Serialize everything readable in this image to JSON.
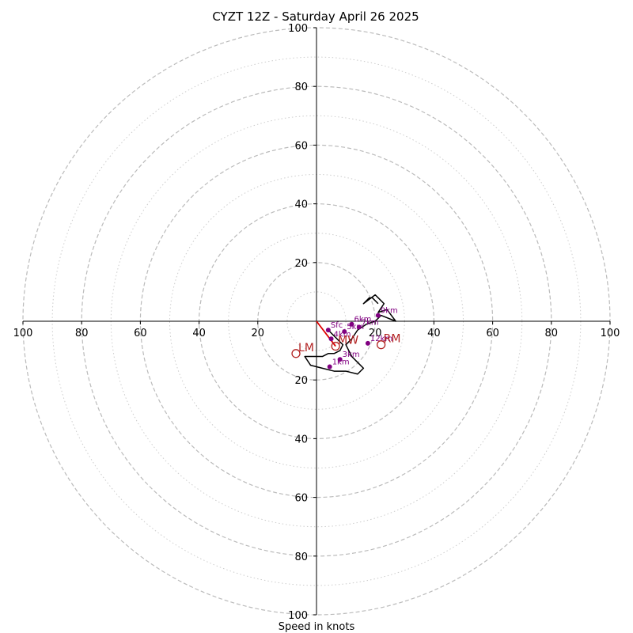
{
  "chart_data": {
    "type": "line",
    "title": "CYZT 12Z - Saturday April 26 2025",
    "xlabel": "Speed in knots",
    "range": [
      -100,
      100
    ],
    "rings_major": [
      20,
      40,
      60,
      80,
      100
    ],
    "rings_minor": [
      10,
      30,
      50,
      70,
      90
    ],
    "tick_labels_x": [
      "100",
      "80",
      "60",
      "40",
      "20",
      "20",
      "40",
      "60",
      "80",
      "100"
    ],
    "tick_values_x": [
      -100,
      -80,
      -60,
      -40,
      -20,
      20,
      40,
      60,
      80,
      100
    ],
    "tick_labels_y": [
      "100",
      "80",
      "60",
      "40",
      "20",
      "20",
      "40",
      "60",
      "80",
      "100"
    ],
    "tick_values_y": [
      100,
      80,
      60,
      40,
      20,
      -20,
      -40,
      -60,
      -80,
      -100
    ],
    "colors": {
      "trace": "#000000",
      "points": "#800080",
      "storm_motion": "#b22222",
      "shear": "#dd0000",
      "grid": "#bbbbbb"
    },
    "trace": {
      "u": [
        4,
        6,
        8,
        9,
        8,
        6,
        4,
        2,
        0,
        -2,
        -4,
        -2,
        2,
        6,
        10,
        14,
        16,
        14,
        12,
        10,
        12,
        14,
        17,
        20,
        22,
        27,
        24,
        21,
        23,
        21,
        20,
        16,
        17,
        18,
        19,
        21
      ],
      "v": [
        -3,
        -5,
        -7,
        -8,
        -10,
        -11,
        -11,
        -12,
        -12,
        -12,
        -12,
        -15,
        -16,
        -17,
        -17,
        -18,
        -16,
        -14,
        -12,
        -8,
        -6,
        -3,
        -1,
        0,
        2,
        0,
        4,
        3,
        6,
        8,
        9,
        6,
        7,
        8,
        8,
        6
      ]
    },
    "height_points": [
      {
        "label": "Sfc",
        "u": 4,
        "v": -3
      },
      {
        "label": "1km",
        "u": 4.5,
        "v": -15.5
      },
      {
        "label": "3km",
        "u": 8,
        "v": -13
      },
      {
        "label": "4km",
        "u": 5,
        "v": -6
      },
      {
        "label": "5km",
        "u": 9.5,
        "v": -3.5
      },
      {
        "label": "6km",
        "u": 12,
        "v": -1
      },
      {
        "label": "7km",
        "u": 14.5,
        "v": -2
      },
      {
        "label": "9km",
        "u": 21,
        "v": 2
      },
      {
        "label": "12km",
        "u": 17.5,
        "v": -7.5
      }
    ],
    "storm_motions": [
      {
        "label": "LM",
        "u": -7,
        "v": -11
      },
      {
        "label": "RM",
        "u": 22,
        "v": -8
      },
      {
        "label": "MW",
        "u": 6.5,
        "v": -8.5
      }
    ],
    "shear_vector": {
      "u0": 0,
      "v0": 0,
      "u1": 6.5,
      "v1": -8.5
    }
  }
}
